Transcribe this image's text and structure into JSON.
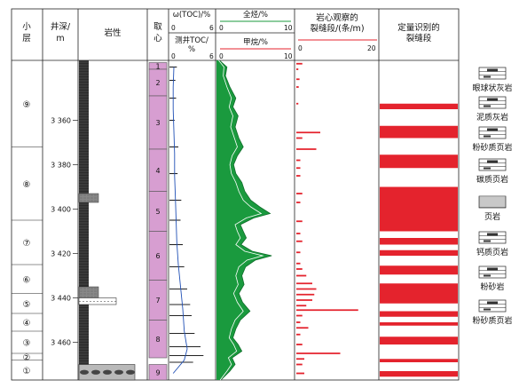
{
  "headers": {
    "sublayer": "小层",
    "depth": "井深/m",
    "lithology": "岩性",
    "core": "取心",
    "toc_title": "ω(TOC)/%",
    "toc_log_title": "测井TOC/%",
    "toc_min": "0",
    "toc_max": "6",
    "gas_title": "全烃/%",
    "methane_title": "甲烷/%",
    "gas_min": "0",
    "gas_max": "10",
    "frac_title": "岩心观察的裂缝段/(条/m)",
    "frac_min": "0",
    "frac_max": "20",
    "quant_title": "定量识别的裂缝段"
  },
  "depth_labels": [
    "3 360",
    "3 380",
    "3 400",
    "3 420",
    "3 440",
    "3 460"
  ],
  "sublayer_labels": [
    "⑨",
    "⑧",
    "⑦",
    "⑥",
    "⑤",
    "④",
    "③",
    "②",
    "①"
  ],
  "core_labels": [
    "1",
    "2",
    "3",
    "4",
    "5",
    "6",
    "7",
    "8",
    "9"
  ],
  "legend": [
    {
      "label": "眼球状灰岩",
      "icon": "augen-limestone-icon"
    },
    {
      "label": "泥质灰岩",
      "icon": "argillaceous-limestone-icon"
    },
    {
      "label": "粉砂质页岩",
      "icon": "silty-shale-icon"
    },
    {
      "label": "碳质页岩",
      "icon": "carbonaceous-shale-icon"
    },
    {
      "label": "页岩",
      "icon": "shale-icon"
    },
    {
      "label": "钙质页岩",
      "icon": "calcareous-shale-icon"
    },
    {
      "label": "粉砂岩",
      "icon": "siltstone-icon"
    },
    {
      "label": "粉砂质页岩",
      "icon": "silty-shale-icon-2"
    }
  ],
  "colors": {
    "core_fill": "#d79ed1",
    "gas_green": "#1a9a3e",
    "frac_red": "#e4232d",
    "methane_red": "#e4232d"
  },
  "chart_data": {
    "type": "well-log",
    "depth_unit": "m",
    "depth_range": [
      3333,
      3477
    ],
    "depth_ticks": [
      3360,
      3380,
      3400,
      3420,
      3440,
      3460
    ],
    "sublayers": [
      {
        "name": "⑨",
        "top": 3333,
        "base": 3372
      },
      {
        "name": "⑧",
        "top": 3372,
        "base": 3405
      },
      {
        "name": "⑦",
        "top": 3405,
        "base": 3425
      },
      {
        "name": "⑥",
        "top": 3425,
        "base": 3438
      },
      {
        "name": "⑤",
        "top": 3438,
        "base": 3447
      },
      {
        "name": "④",
        "top": 3447,
        "base": 3455
      },
      {
        "name": "③",
        "top": 3455,
        "base": 3465
      },
      {
        "name": "②",
        "top": 3465,
        "base": 3468
      },
      {
        "name": "①",
        "top": 3468,
        "base": 3477
      }
    ],
    "core_sections": [
      {
        "name": "1",
        "top": 3334,
        "base": 3337
      },
      {
        "name": "2",
        "top": 3337,
        "base": 3349
      },
      {
        "name": "3",
        "top": 3349,
        "base": 3373
      },
      {
        "name": "4",
        "top": 3373,
        "base": 3392
      },
      {
        "name": "5",
        "top": 3392,
        "base": 3410
      },
      {
        "name": "6",
        "top": 3410,
        "base": 3432
      },
      {
        "name": "7",
        "top": 3432,
        "base": 3450
      },
      {
        "name": "8",
        "top": 3450,
        "base": 3467
      },
      {
        "name": "9",
        "top": 3470,
        "base": 3477
      }
    ],
    "toc_range": [
      0,
      6
    ],
    "toc_core_samples": [
      {
        "depth": 3336,
        "value": 1.0
      },
      {
        "depth": 3342,
        "value": 0.8
      },
      {
        "depth": 3350,
        "value": 0.9
      },
      {
        "depth": 3360,
        "value": 0.7
      },
      {
        "depth": 3372,
        "value": 1.2
      },
      {
        "depth": 3384,
        "value": 1.1
      },
      {
        "depth": 3396,
        "value": 1.6
      },
      {
        "depth": 3405,
        "value": 1.5
      },
      {
        "depth": 3416,
        "value": 1.8
      },
      {
        "depth": 3426,
        "value": 2.0
      },
      {
        "depth": 3436,
        "value": 2.4
      },
      {
        "depth": 3443,
        "value": 2.8
      },
      {
        "depth": 3448,
        "value": 3.0
      },
      {
        "depth": 3456,
        "value": 3.4
      },
      {
        "depth": 3462,
        "value": 4.2
      },
      {
        "depth": 3466,
        "value": 4.6
      },
      {
        "depth": 3469,
        "value": 3.2
      }
    ],
    "toc_log_curve": [
      [
        3336,
        0.6
      ],
      [
        3345,
        0.5
      ],
      [
        3355,
        0.5
      ],
      [
        3365,
        0.6
      ],
      [
        3375,
        0.7
      ],
      [
        3385,
        0.7
      ],
      [
        3395,
        0.8
      ],
      [
        3405,
        0.9
      ],
      [
        3415,
        1.0
      ],
      [
        3425,
        1.2
      ],
      [
        3435,
        1.5
      ],
      [
        3445,
        1.8
      ],
      [
        3455,
        2.0
      ],
      [
        3463,
        2.4
      ],
      [
        3468,
        2.0
      ],
      [
        3474,
        0.5
      ]
    ],
    "gas_range": [
      0,
      10
    ],
    "total_hydrocarbon": [
      [
        3333,
        0.4
      ],
      [
        3336,
        1.4
      ],
      [
        3340,
        1.2
      ],
      [
        3345,
        1.8
      ],
      [
        3350,
        2.6
      ],
      [
        3354,
        2.2
      ],
      [
        3358,
        2.9
      ],
      [
        3363,
        2.5
      ],
      [
        3368,
        3.0
      ],
      [
        3372,
        3.6
      ],
      [
        3376,
        2.8
      ],
      [
        3380,
        2.3
      ],
      [
        3384,
        2.6
      ],
      [
        3388,
        3.4
      ],
      [
        3392,
        3.8
      ],
      [
        3396,
        4.6
      ],
      [
        3399,
        5.8
      ],
      [
        3402,
        7.2
      ],
      [
        3404,
        5.0
      ],
      [
        3407,
        3.2
      ],
      [
        3410,
        3.6
      ],
      [
        3413,
        4.0
      ],
      [
        3416,
        3.3
      ],
      [
        3419,
        4.8
      ],
      [
        3421,
        7.4
      ],
      [
        3423,
        5.2
      ],
      [
        3426,
        3.9
      ],
      [
        3430,
        3.4
      ],
      [
        3434,
        3.7
      ],
      [
        3438,
        3.0
      ],
      [
        3442,
        3.5
      ],
      [
        3446,
        4.5
      ],
      [
        3450,
        3.2
      ],
      [
        3454,
        2.6
      ],
      [
        3458,
        2.2
      ],
      [
        3461,
        2.9
      ],
      [
        3464,
        3.4
      ],
      [
        3467,
        2.1
      ],
      [
        3470,
        2.5
      ],
      [
        3473,
        1.8
      ],
      [
        3477,
        0.6
      ]
    ],
    "methane": [
      [
        3333,
        0.3
      ],
      [
        3336,
        1.0
      ],
      [
        3340,
        0.9
      ],
      [
        3345,
        1.4
      ],
      [
        3350,
        2.0
      ],
      [
        3354,
        1.7
      ],
      [
        3358,
        2.2
      ],
      [
        3363,
        1.9
      ],
      [
        3368,
        2.4
      ],
      [
        3372,
        2.8
      ],
      [
        3376,
        2.1
      ],
      [
        3380,
        1.8
      ],
      [
        3384,
        2.0
      ],
      [
        3388,
        2.6
      ],
      [
        3392,
        3.0
      ],
      [
        3396,
        3.6
      ],
      [
        3399,
        4.6
      ],
      [
        3402,
        6.0
      ],
      [
        3404,
        4.0
      ],
      [
        3407,
        2.5
      ],
      [
        3410,
        2.8
      ],
      [
        3413,
        3.2
      ],
      [
        3416,
        2.6
      ],
      [
        3419,
        3.8
      ],
      [
        3421,
        6.2
      ],
      [
        3423,
        4.1
      ],
      [
        3426,
        3.0
      ],
      [
        3430,
        2.6
      ],
      [
        3434,
        2.9
      ],
      [
        3438,
        2.3
      ],
      [
        3442,
        2.8
      ],
      [
        3446,
        3.6
      ],
      [
        3450,
        2.5
      ],
      [
        3454,
        2.0
      ],
      [
        3458,
        1.7
      ],
      [
        3461,
        2.3
      ],
      [
        3464,
        2.7
      ],
      [
        3467,
        1.6
      ],
      [
        3470,
        2.0
      ],
      [
        3473,
        1.4
      ],
      [
        3477,
        0.5
      ]
    ],
    "fracture_range": [
      0,
      20
    ],
    "core_fractures": [
      {
        "depth": 3334.5,
        "value": 1.5
      },
      {
        "depth": 3337.0,
        "value": 0.5
      },
      {
        "depth": 3341.5,
        "value": 0.8
      },
      {
        "depth": 3345.0,
        "value": 0.6
      },
      {
        "depth": 3352.5,
        "value": 0.5
      },
      {
        "depth": 3365.5,
        "value": 6.0
      },
      {
        "depth": 3368.0,
        "value": 1.5
      },
      {
        "depth": 3373.0,
        "value": 5.0
      },
      {
        "depth": 3378.0,
        "value": 1.0
      },
      {
        "depth": 3381.5,
        "value": 1.0
      },
      {
        "depth": 3385.0,
        "value": 1.0
      },
      {
        "depth": 3393.0,
        "value": 1.5
      },
      {
        "depth": 3397.0,
        "value": 1.0
      },
      {
        "depth": 3405.5,
        "value": 1.5
      },
      {
        "depth": 3411.0,
        "value": 1.0
      },
      {
        "depth": 3414.5,
        "value": 1.5
      },
      {
        "depth": 3419.5,
        "value": 1.0
      },
      {
        "depth": 3424.5,
        "value": 1.0
      },
      {
        "depth": 3427.0,
        "value": 1.5
      },
      {
        "depth": 3430.0,
        "value": 2.5
      },
      {
        "depth": 3433.5,
        "value": 4.0
      },
      {
        "depth": 3436.0,
        "value": 5.0
      },
      {
        "depth": 3438.5,
        "value": 4.5
      },
      {
        "depth": 3441.0,
        "value": 4.0
      },
      {
        "depth": 3443.5,
        "value": 2.5
      },
      {
        "depth": 3445.5,
        "value": 15.5
      },
      {
        "depth": 3448.0,
        "value": 1.5
      },
      {
        "depth": 3451.0,
        "value": 1.0
      },
      {
        "depth": 3453.5,
        "value": 3.0
      },
      {
        "depth": 3456.5,
        "value": 1.0
      },
      {
        "depth": 3461.0,
        "value": 1.5
      },
      {
        "depth": 3465.0,
        "value": 11.0
      },
      {
        "depth": 3467.5,
        "value": 2.0
      },
      {
        "depth": 3470.0,
        "value": 1.5
      },
      {
        "depth": 3474.0,
        "value": 2.0
      }
    ],
    "quantitative_fracture_intervals": [
      {
        "top": 3352.5,
        "base": 3355.0
      },
      {
        "top": 3362.5,
        "base": 3368.0
      },
      {
        "top": 3375.5,
        "base": 3381.5
      },
      {
        "top": 3390.0,
        "base": 3410.0
      },
      {
        "top": 3413.0,
        "base": 3416.0
      },
      {
        "top": 3418.5,
        "base": 3421.0
      },
      {
        "top": 3425.5,
        "base": 3429.5
      },
      {
        "top": 3433.5,
        "base": 3442.5
      },
      {
        "top": 3446.0,
        "base": 3448.5
      },
      {
        "top": 3451.0,
        "base": 3452.5
      },
      {
        "top": 3457.5,
        "base": 3461.0
      },
      {
        "top": 3467.5,
        "base": 3469.0
      },
      {
        "top": 3473.0,
        "base": 3475.5
      }
    ],
    "lithology_intervals": [
      {
        "top": 3333,
        "base": 3393,
        "rock": "shale"
      },
      {
        "top": 3393,
        "base": 3397,
        "rock": "silty-shale"
      },
      {
        "top": 3397,
        "base": 3435,
        "rock": "shale"
      },
      {
        "top": 3435,
        "base": 3440,
        "rock": "carbonaceous-shale"
      },
      {
        "top": 3440,
        "base": 3443,
        "rock": "siltstone"
      },
      {
        "top": 3443,
        "base": 3470,
        "rock": "shale"
      },
      {
        "top": 3470,
        "base": 3477,
        "rock": "augen-limestone"
      }
    ]
  }
}
